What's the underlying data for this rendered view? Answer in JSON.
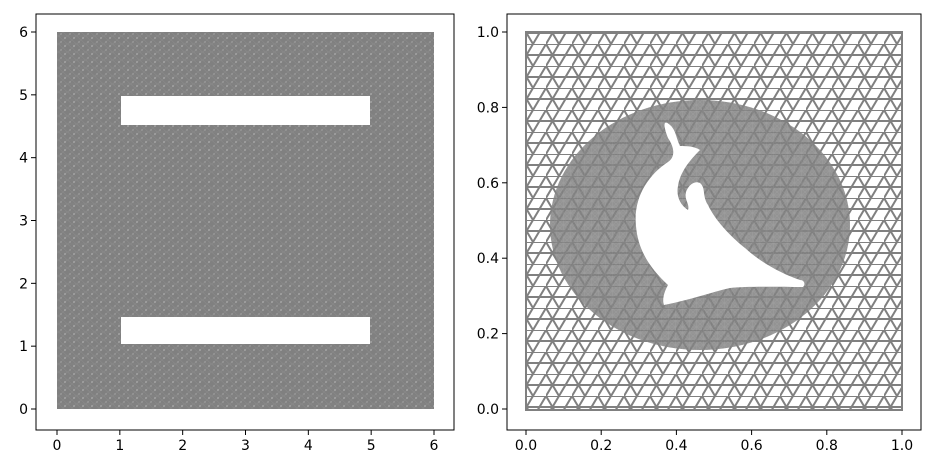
{
  "figure": {
    "panels": [
      {
        "id": "left",
        "title": "",
        "x_ticks": [
          "0",
          "1",
          "2",
          "3",
          "4",
          "5",
          "6"
        ],
        "y_ticks": [
          "0",
          "1",
          "2",
          "3",
          "4",
          "5",
          "6"
        ],
        "xlim": [
          0,
          6
        ],
        "ylim": [
          0,
          6
        ],
        "domain": [
          0,
          6,
          0,
          6
        ],
        "holes": [
          {
            "x0": 1,
            "x1": 5,
            "y0": 4.55,
            "y1": 5.0
          },
          {
            "x0": 1,
            "x1": 5,
            "y0": 1.0,
            "y1": 1.45
          }
        ],
        "mesh_color": "#808080"
      },
      {
        "id": "right",
        "title": "",
        "x_ticks": [
          "0.0",
          "0.2",
          "0.4",
          "0.6",
          "0.8",
          "1.0"
        ],
        "y_ticks": [
          "0.0",
          "0.2",
          "0.4",
          "0.6",
          "0.8",
          "1.0"
        ],
        "xlim": [
          0,
          1
        ],
        "ylim": [
          0,
          1
        ],
        "domain": [
          0,
          1,
          0,
          1
        ],
        "hole_shape": "dolphin",
        "mesh_color": "#808080"
      }
    ]
  }
}
